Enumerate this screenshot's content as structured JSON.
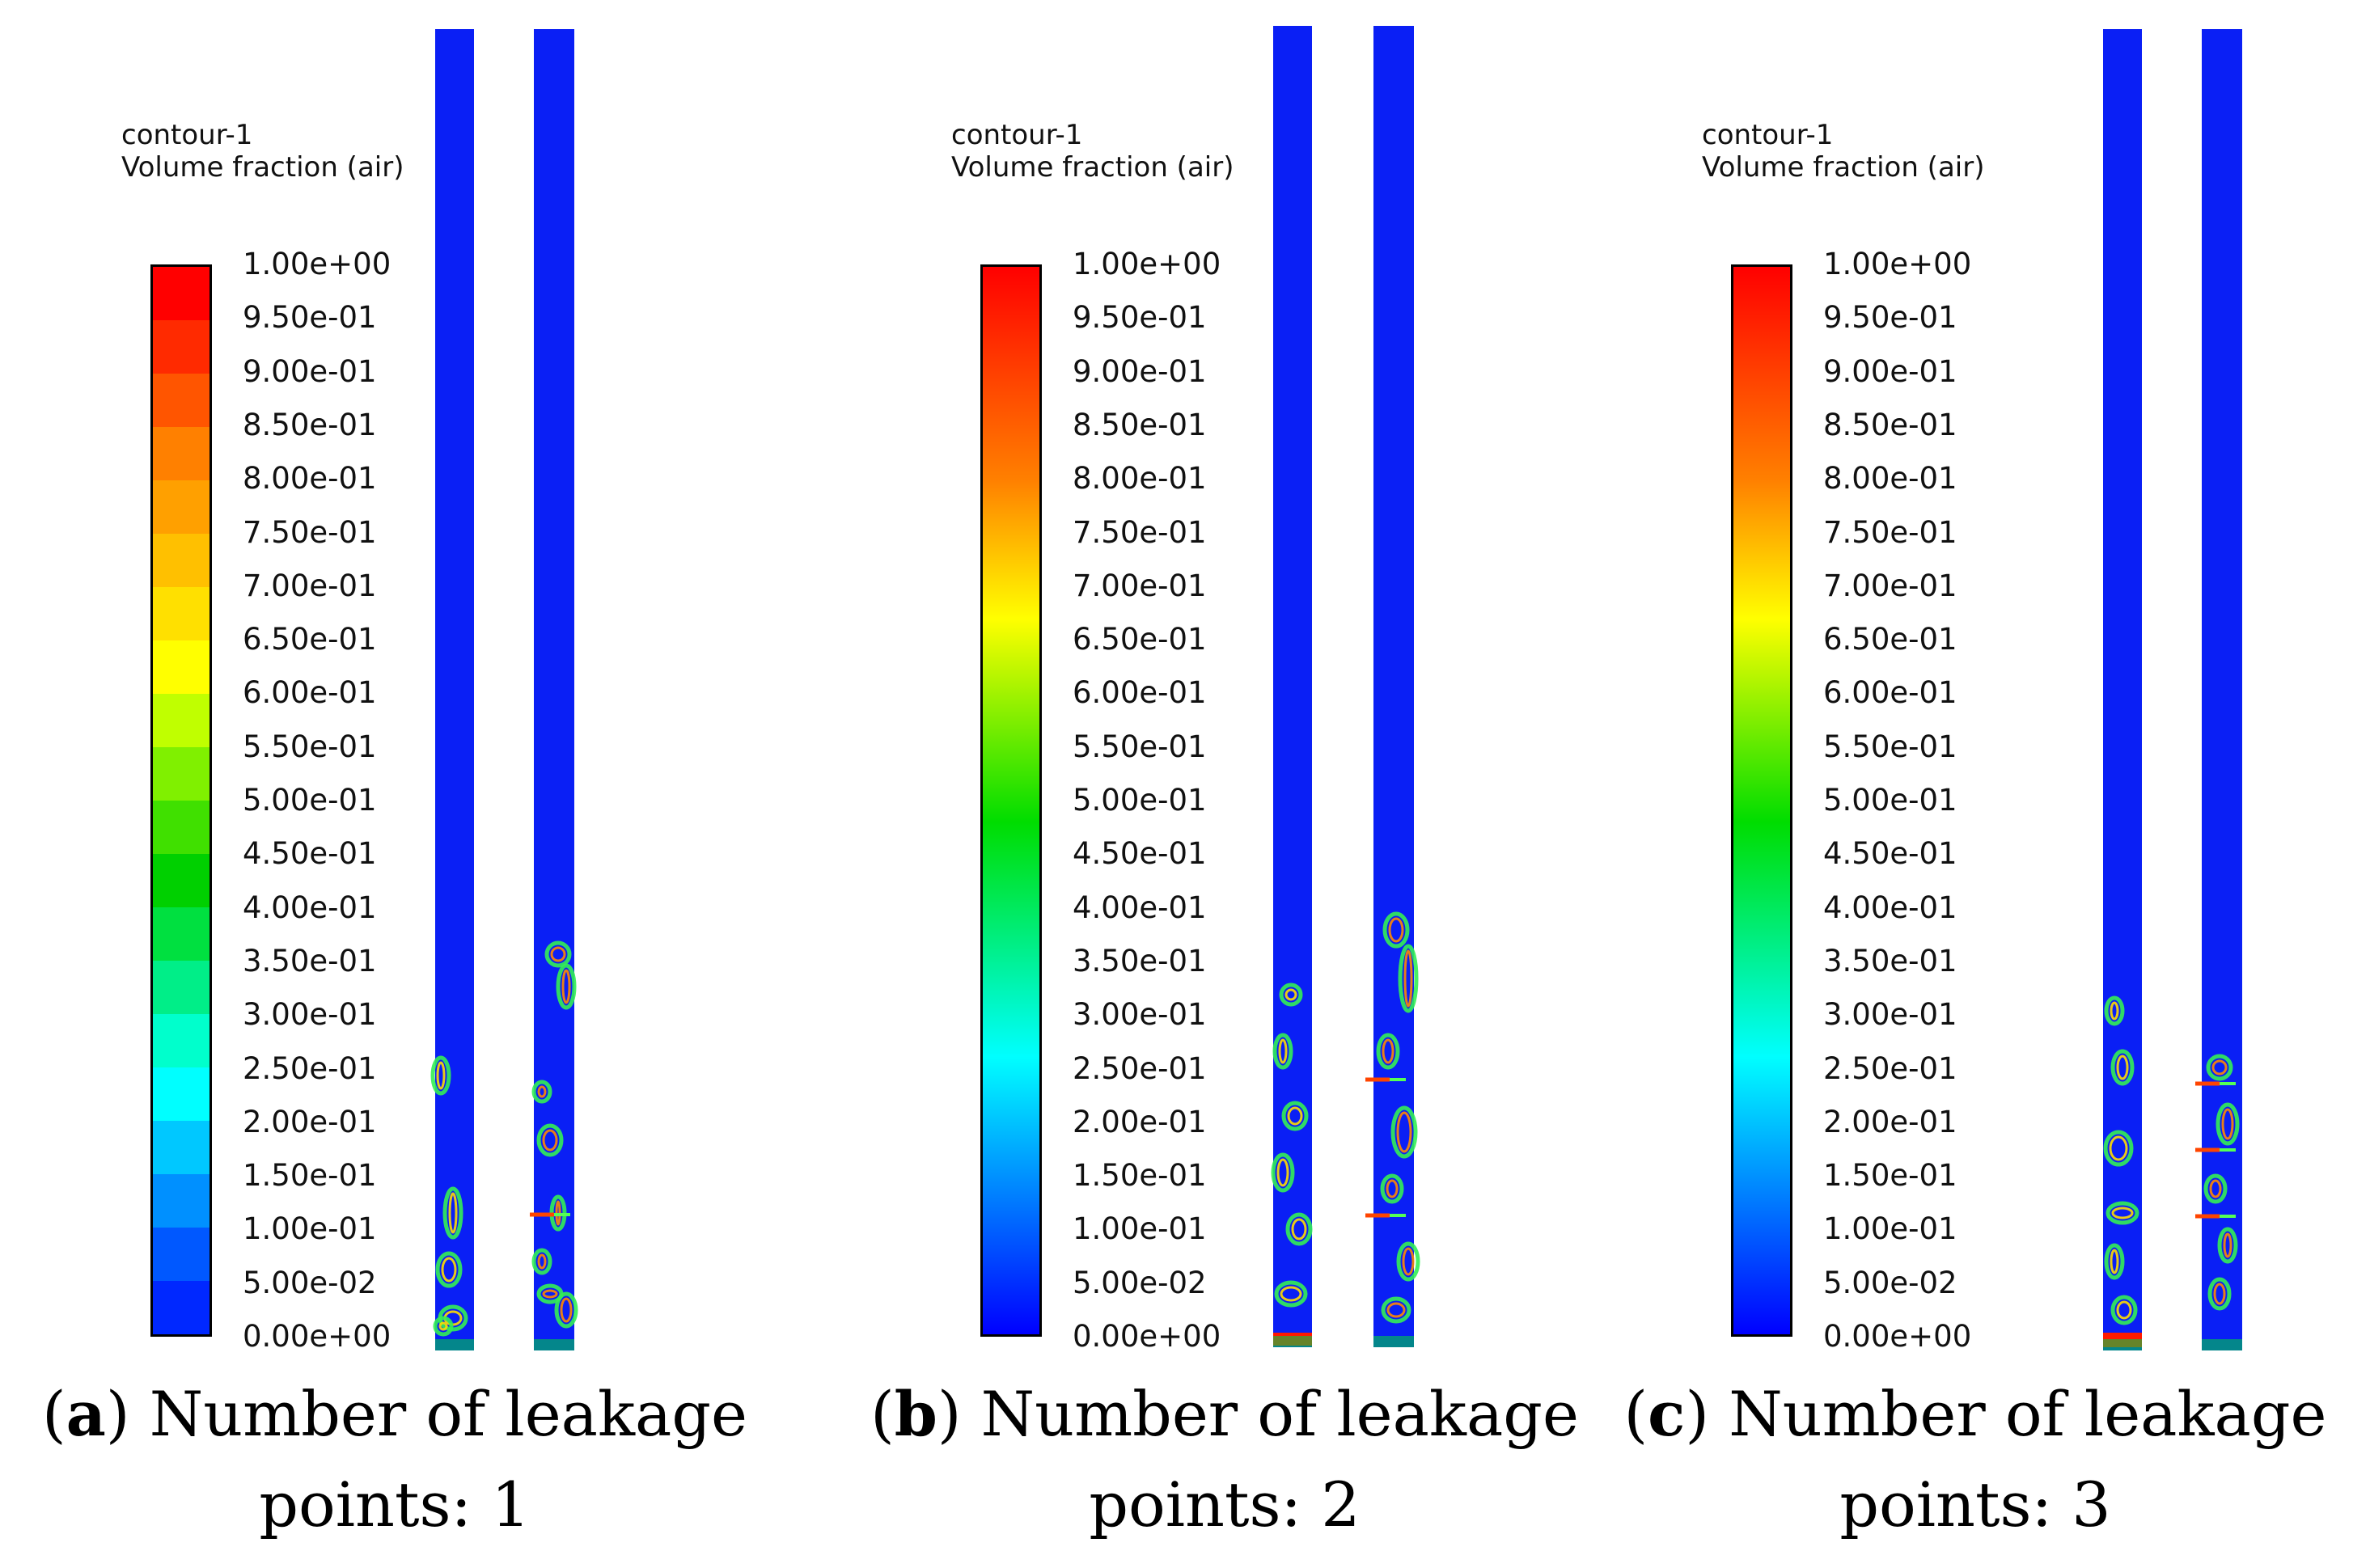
{
  "legend": {
    "line1": "contour-1",
    "line2": "Volume fraction (air)",
    "ticks": [
      "1.00e+00",
      "9.50e-01",
      "9.00e-01",
      "8.50e-01",
      "8.00e-01",
      "7.50e-01",
      "7.00e-01",
      "6.50e-01",
      "6.00e-01",
      "5.50e-01",
      "5.00e-01",
      "4.50e-01",
      "4.00e-01",
      "3.50e-01",
      "3.00e-01",
      "2.50e-01",
      "2.00e-01",
      "1.50e-01",
      "1.00e-01",
      "5.00e-02",
      "0.00e+00"
    ],
    "colors": {
      "top": "#ff0000",
      "orange": "#ff8000",
      "yellow": "#ffff00",
      "green": "#00dd00",
      "cyan": "#00ffff",
      "blue": "#0000ff"
    }
  },
  "panels": [
    {
      "letter": "a",
      "caption_rest": ") Number of leakage",
      "caption_line2": "points: 1",
      "style": "stepped"
    },
    {
      "letter": "b",
      "caption_rest": ") Number of leakage",
      "caption_line2": "points: 2",
      "style": "smooth"
    },
    {
      "letter": "c",
      "caption_rest": ") Number of leakage",
      "caption_line2": "points: 3",
      "style": "smooth"
    }
  ],
  "pipe_color": "#0a1ff5",
  "open_paren": "("
}
